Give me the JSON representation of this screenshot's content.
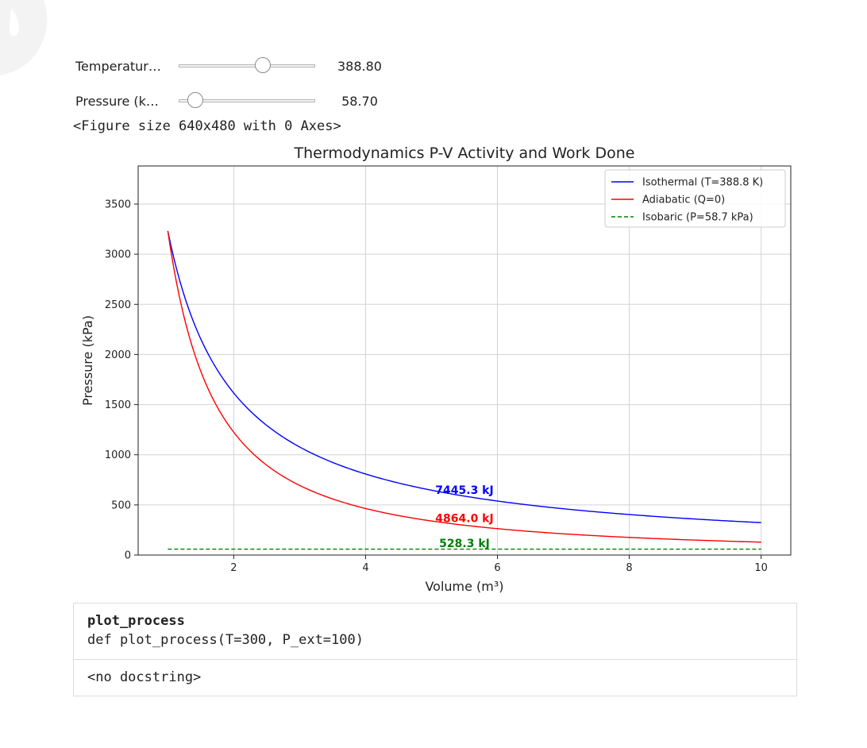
{
  "widgets": {
    "temperature": {
      "label": "Temperatur…",
      "value_text": "388.80",
      "fraction": 0.63
    },
    "pressure": {
      "label": "Pressure (k…",
      "value_text": "58.70",
      "fraction": 0.07
    }
  },
  "figure_text": "<Figure size 640x480 with 0 Axes>",
  "docstring": {
    "name": "plot_process",
    "signature": "def plot_process(T=300, P_ext=100)",
    "body": "<no docstring>"
  },
  "chart_data": {
    "type": "line",
    "title": "Thermodynamics P-V Activity and Work Done",
    "xlabel": "Volume (m³)",
    "ylabel": "Pressure (kPa)",
    "xlim": [
      0.55,
      10.45
    ],
    "ylim": [
      0,
      3880
    ],
    "xticks": [
      2,
      4,
      6,
      8,
      10
    ],
    "yticks": [
      0,
      500,
      1000,
      1500,
      2000,
      2500,
      3000,
      3500
    ],
    "grid": true,
    "legend_position": "top-right",
    "x_range": [
      1,
      10
    ],
    "series": [
      {
        "name": "Isothermal (T=388.8 K)",
        "color": "#0000ff",
        "dash": "solid",
        "kind": "isothermal",
        "p_at_v1": 3232,
        "gamma": 1.0
      },
      {
        "name": "Adiabatic (Q=0)",
        "color": "#ff0000",
        "dash": "solid",
        "kind": "adiabatic",
        "p_at_v1": 3232,
        "gamma": 1.4
      },
      {
        "name": "Isobaric (P=58.7 kPa)",
        "color": "#008000",
        "dash": "dashed",
        "kind": "isobaric",
        "p_at_v1": 58.7,
        "gamma": 0
      }
    ],
    "annotations": [
      {
        "text": "7445.3 kJ",
        "x": 5.5,
        "y": 610,
        "color": "#0000ff"
      },
      {
        "text": "4864.0 kJ",
        "x": 5.5,
        "y": 330,
        "color": "#ff0000"
      },
      {
        "text": "528.3 kJ",
        "x": 5.5,
        "y": 80,
        "color": "#008000"
      }
    ]
  }
}
